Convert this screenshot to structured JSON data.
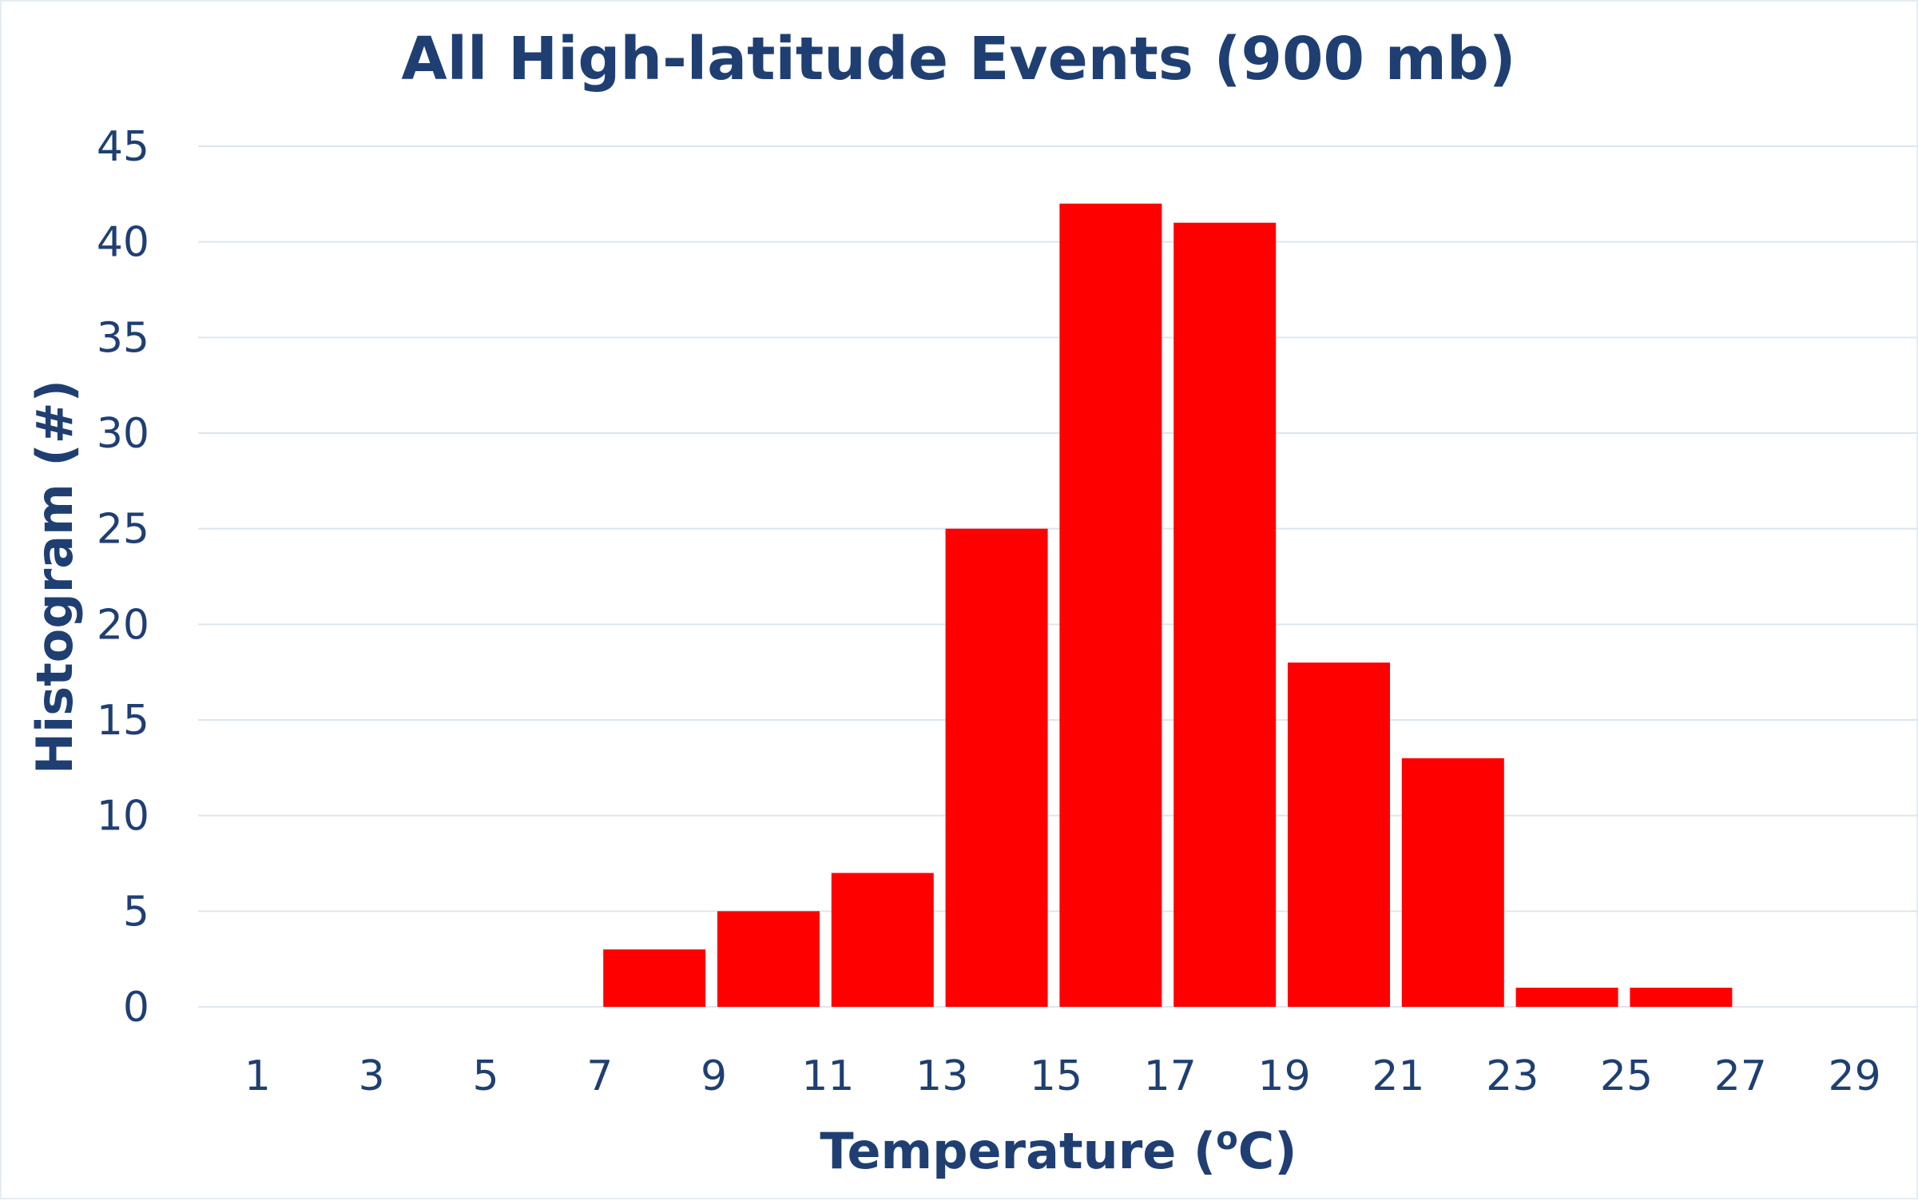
{
  "chart_data": {
    "type": "bar",
    "title": "All High-latitude Events (900 mb)",
    "xlabel": "Temperature (oC)",
    "ylabel": "Histogram (#)",
    "categories": [
      "1",
      "3",
      "5",
      "7",
      "9",
      "11",
      "13",
      "15",
      "17",
      "19",
      "21",
      "23",
      "25",
      "27",
      "29"
    ],
    "values": [
      0,
      0,
      0,
      3,
      5,
      7,
      25,
      42,
      41,
      18,
      13,
      1,
      1,
      0,
      0
    ],
    "ylim": [
      0,
      45
    ],
    "yticks": [
      0,
      5,
      10,
      15,
      20,
      25,
      30,
      35,
      40,
      45
    ],
    "grid": true,
    "legend": "none",
    "colors": {
      "bar": "#ff0000",
      "text": "#1f3f73",
      "grid": "#dde6ee"
    }
  }
}
